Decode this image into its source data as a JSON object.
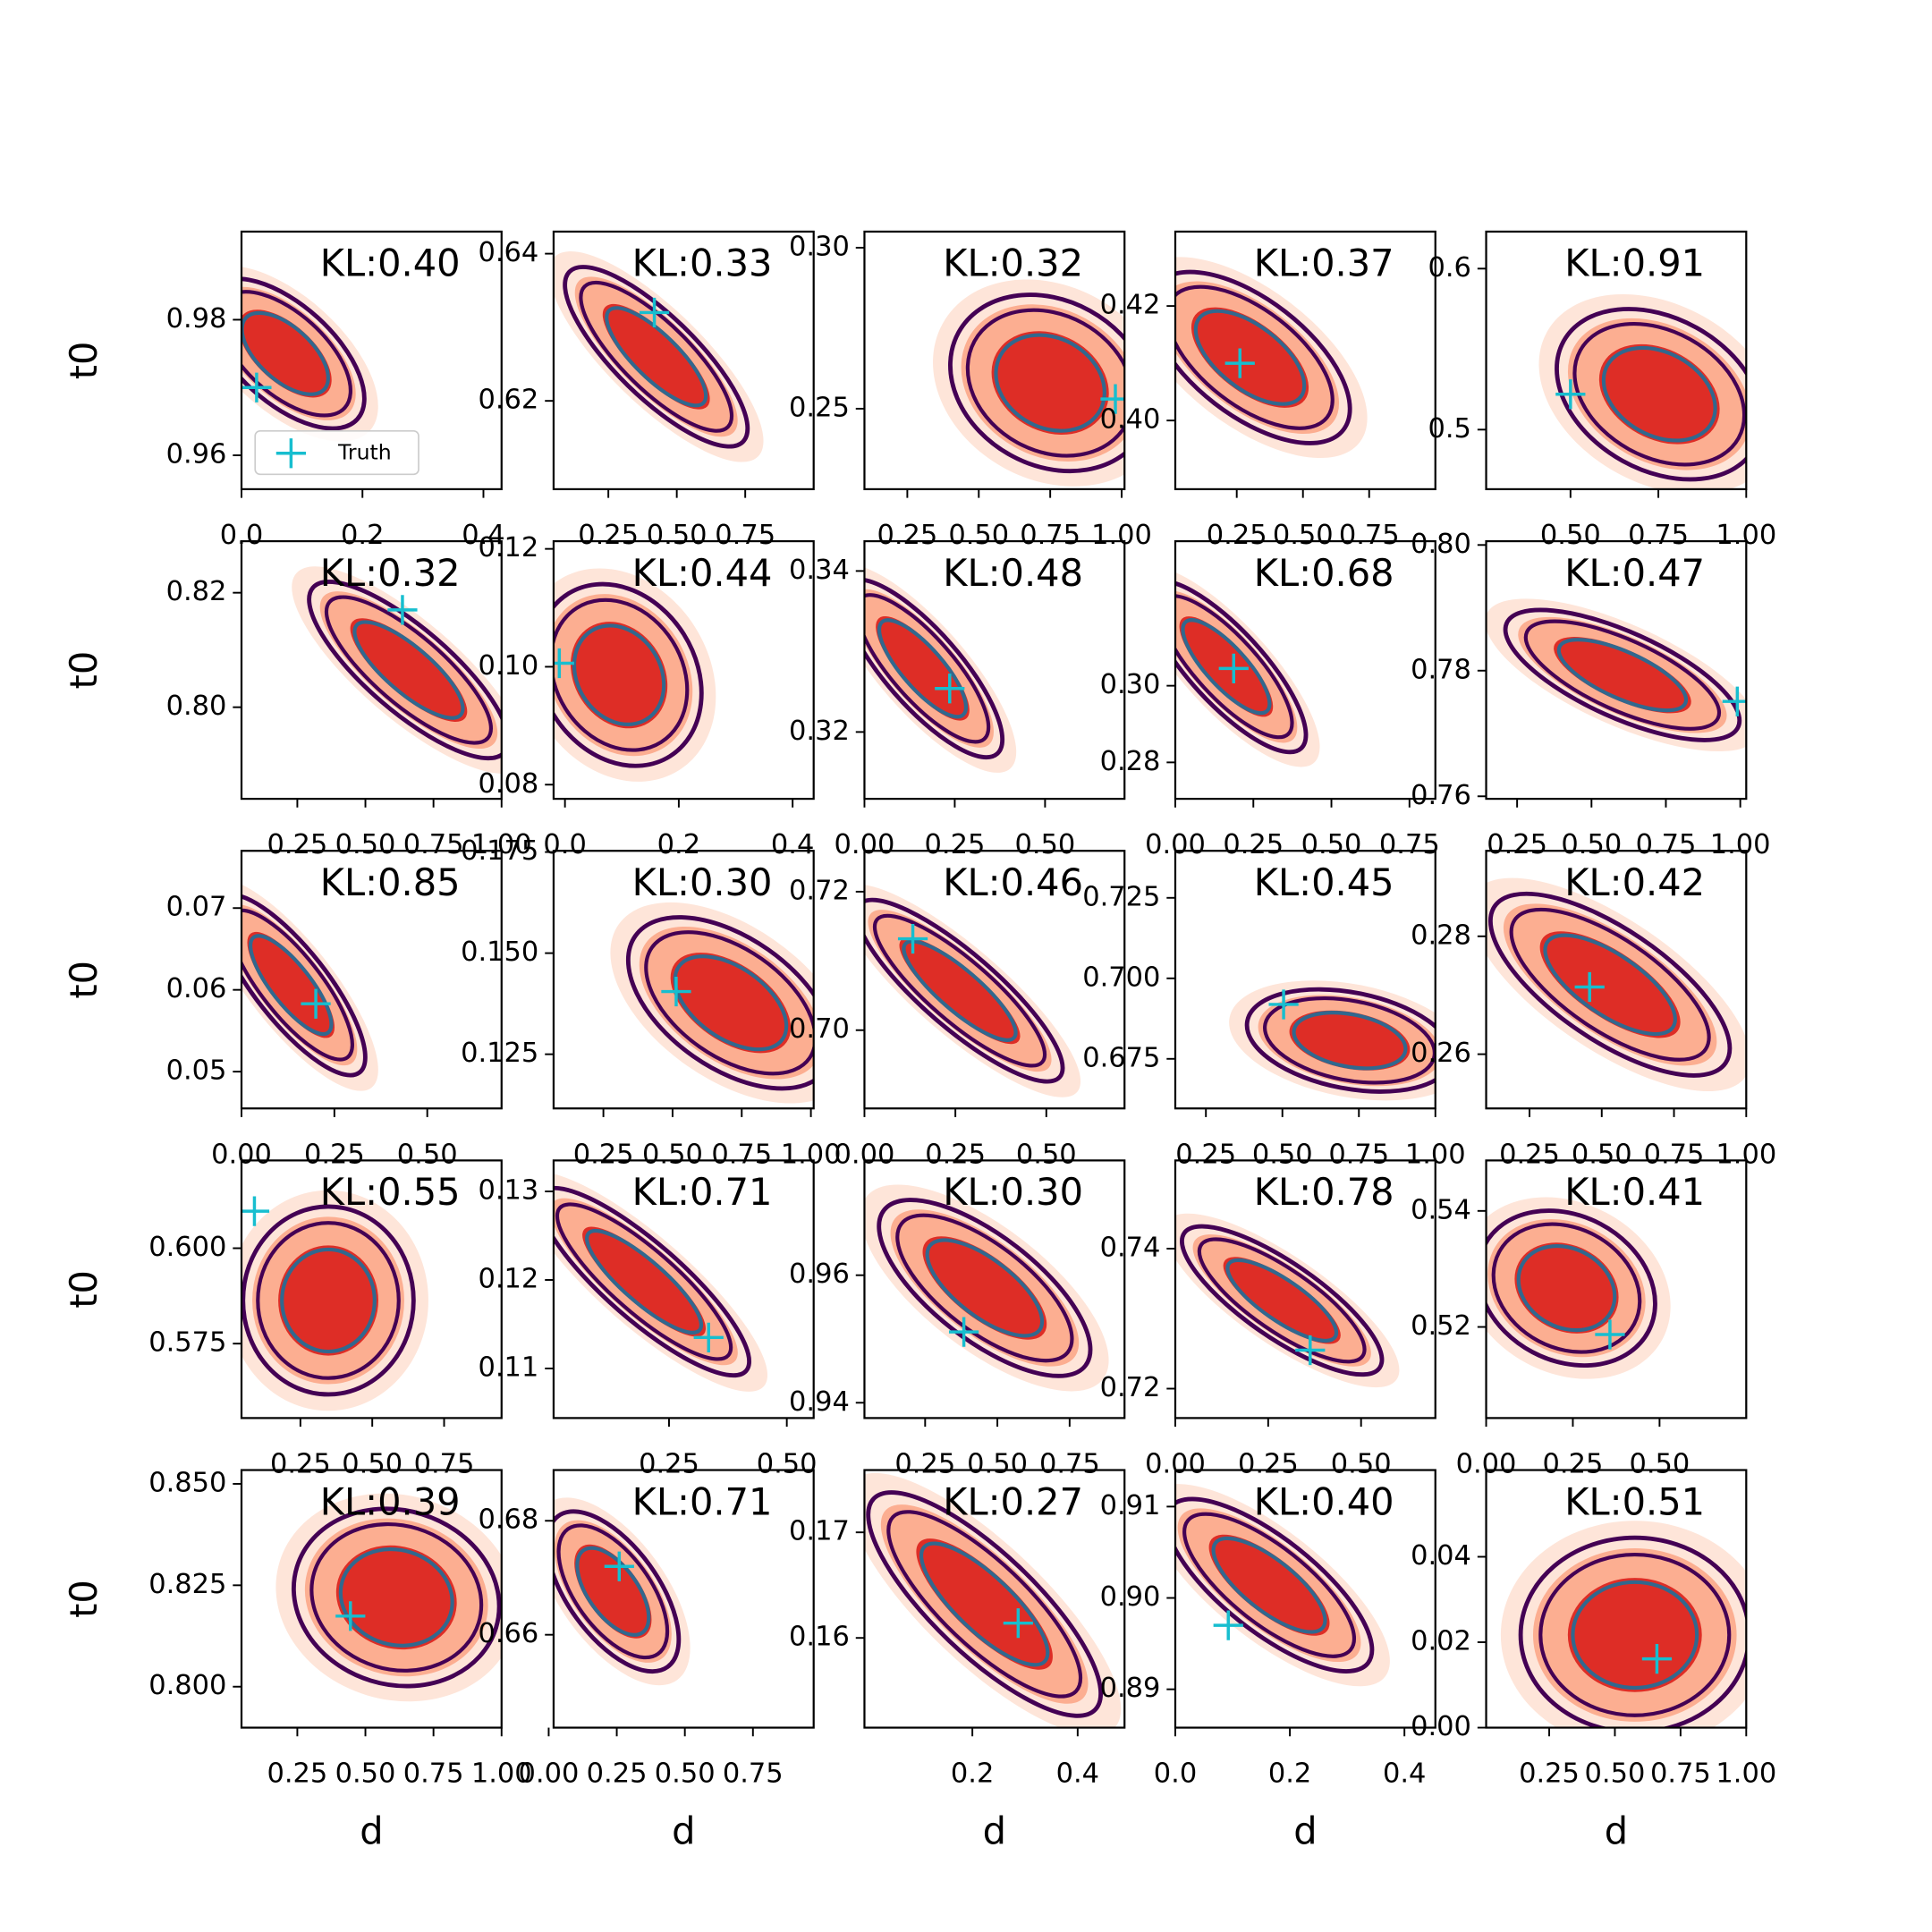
{
  "colors": {
    "fill": [
      "#fee5d9",
      "#fcae91",
      "#de2d26"
    ],
    "contour": [
      "#440154",
      "#440154",
      "#31688e"
    ],
    "truth": "#17becf"
  },
  "chart_data": [
    {
      "type": "contour",
      "annotation": "KL:0.40",
      "ylabel": "t0",
      "legend": "Truth",
      "xlim": [
        0,
        0.43
      ],
      "xticks": [
        {
          "value": 0,
          "label": "0.0"
        },
        0.2,
        0.4
      ],
      "ylim": [
        0.955,
        0.993
      ],
      "yticks": [
        0.96,
        0.98
      ],
      "truth": {
        "x": 0.025,
        "y": 0.97
      },
      "density": {
        "x": 0.072,
        "y": 0.975,
        "sx": 0.057,
        "sy": 0.0048,
        "rho": -0.6
      }
    },
    {
      "type": "contour",
      "annotation": "KL:0.33",
      "xlim": [
        0.05,
        1.0
      ],
      "xticks": [
        0.25,
        {
          "value": 0.5,
          "label": "0.50"
        },
        0.75
      ],
      "ylim": [
        0.608,
        0.643
      ],
      "yticks": [
        0.62,
        0.64
      ],
      "truth": {
        "x": 0.418,
        "y": 0.632
      },
      "density": {
        "x": 0.425,
        "y": 0.626,
        "sx": 0.145,
        "sy": 0.0053,
        "rho": -0.8
      }
    },
    {
      "type": "contour",
      "annotation": "KL:0.32",
      "xlim": [
        0.1,
        1.01
      ],
      "xticks": [
        0.25,
        {
          "value": 0.5,
          "label": "0.50"
        },
        0.75,
        {
          "value": 1,
          "label": "1.00"
        }
      ],
      "ylim": [
        0.225,
        0.305
      ],
      "yticks": [
        0.25,
        {
          "value": 0.3,
          "label": "0.30"
        }
      ],
      "truth": {
        "x": 0.978,
        "y": 0.253
      },
      "density": {
        "x": 0.75,
        "y": 0.258,
        "sx": 0.152,
        "sy": 0.0119,
        "rho": -0.2
      }
    },
    {
      "type": "contour",
      "annotation": "KL:0.37",
      "xlim": [
        0.018,
        1.0
      ],
      "xticks": [
        0.25,
        {
          "value": 0.5,
          "label": "0.50"
        },
        0.75
      ],
      "ylim": [
        0.388,
        0.433
      ],
      "yticks": [
        {
          "value": 0.4,
          "label": "0.40"
        },
        0.42
      ],
      "truth": {
        "x": 0.262,
        "y": 0.41
      },
      "density": {
        "x": 0.3,
        "y": 0.411,
        "sx": 0.164,
        "sy": 0.0065,
        "rho": -0.6
      }
    },
    {
      "type": "contour",
      "annotation": "KL:0.91",
      "xlim": [
        0.26,
        1.0
      ],
      "xticks": [
        {
          "value": 0.5,
          "label": "0.50"
        },
        0.75,
        {
          "value": 1,
          "label": "1.00"
        }
      ],
      "ylim": [
        0.463,
        0.623
      ],
      "yticks": [
        0.5,
        0.6
      ],
      "truth": {
        "x": 0.5,
        "y": 0.522
      },
      "density": {
        "x": 0.753,
        "y": 0.522,
        "sx": 0.127,
        "sy": 0.023,
        "rho": -0.3
      }
    },
    {
      "type": "contour",
      "annotation": "KL:0.32",
      "ylabel": "t0",
      "xlim": [
        0.045,
        1.0
      ],
      "xticks": [
        0.25,
        {
          "value": 0.5,
          "label": "0.50"
        },
        0.75,
        {
          "value": 1,
          "label": "1.00"
        }
      ],
      "ylim": [
        0.784,
        0.829
      ],
      "yticks": [
        {
          "value": 0.8,
          "label": "0.80"
        },
        0.82
      ],
      "truth": {
        "x": 0.636,
        "y": 0.817
      },
      "density": {
        "x": 0.659,
        "y": 0.8065,
        "sx": 0.159,
        "sy": 0.0067,
        "rho": -0.8
      }
    },
    {
      "type": "contour",
      "annotation": "KL:0.44",
      "xlim": [
        -0.02,
        0.437
      ],
      "xticks": [
        {
          "value": 0,
          "label": "0.0"
        },
        0.2,
        0.4
      ],
      "ylim": [
        0.0776,
        0.1213
      ],
      "yticks": [
        0.08,
        {
          "value": 0.1,
          "label": "0.10"
        },
        0.12
      ],
      "truth": {
        "x": -0.01,
        "y": 0.1006
      },
      "density": {
        "x": 0.095,
        "y": 0.0986,
        "sx": 0.063,
        "sy": 0.0067,
        "rho": -0.2
      }
    },
    {
      "type": "contour",
      "annotation": "KL:0.48",
      "xlim": [
        0,
        0.72
      ],
      "xticks": [
        {
          "value": 0,
          "label": "0.00"
        },
        0.25,
        {
          "value": 0.5,
          "label": "0.50"
        }
      ],
      "ylim": [
        0.3117,
        0.3437
      ],
      "yticks": [
        0.32,
        0.34
      ],
      "truth": {
        "x": 0.236,
        "y": 0.3254
      },
      "density": {
        "x": 0.161,
        "y": 0.3279,
        "sx": 0.096,
        "sy": 0.0048,
        "rho": -0.8
      }
    },
    {
      "type": "contour",
      "annotation": "KL:0.68",
      "xlim": [
        0,
        0.833
      ],
      "xticks": [
        {
          "value": 0,
          "label": "0.00"
        },
        0.25,
        {
          "value": 0.5,
          "label": "0.50"
        },
        0.75
      ],
      "ylim": [
        0.2705,
        0.3377
      ],
      "yticks": [
        0.28,
        {
          "value": 0.3,
          "label": "0.30"
        }
      ],
      "truth": {
        "x": 0.187,
        "y": 0.3045
      },
      "density": {
        "x": 0.163,
        "y": 0.305,
        "sx": 0.111,
        "sy": 0.0097,
        "rho": -0.8
      }
    },
    {
      "type": "contour",
      "annotation": "KL:0.47",
      "xlim": [
        0.146,
        1.02
      ],
      "xticks": [
        0.25,
        {
          "value": 0.5,
          "label": "0.50"
        },
        0.75,
        {
          "value": 1,
          "label": "1.00"
        }
      ],
      "ylim": [
        0.7596,
        0.8006
      ],
      "yticks": [
        0.76,
        0.78,
        {
          "value": 0.8,
          "label": "0.80"
        }
      ],
      "truth": {
        "x": 0.99,
        "y": 0.7751
      },
      "density": {
        "x": 0.604,
        "y": 0.7793,
        "sx": 0.171,
        "sy": 0.0045,
        "rho": -0.7
      }
    },
    {
      "type": "contour",
      "annotation": "KL:0.85",
      "ylabel": "t0",
      "xlim": [
        0,
        0.7
      ],
      "xticks": [
        {
          "value": 0,
          "label": "0.00"
        },
        0.25,
        {
          "value": 0.5,
          "label": "0.50"
        }
      ],
      "ylim": [
        0.0455,
        0.077
      ],
      "yticks": [
        0.05,
        0.06,
        0.07
      ],
      "truth": {
        "x": 0.2,
        "y": 0.0583
      },
      "density": {
        "x": 0.133,
        "y": 0.0606,
        "sx": 0.087,
        "sy": 0.0048,
        "rho": -0.8
      }
    },
    {
      "type": "contour",
      "annotation": "KL:0.30",
      "xlim": [
        0.07,
        1.01
      ],
      "xticks": [
        0.25,
        {
          "value": 0.5,
          "label": "0.50"
        },
        0.75,
        {
          "value": 1,
          "label": "1.00"
        }
      ],
      "ylim": [
        0.1116,
        0.1753
      ],
      "yticks": [
        0.125,
        {
          "value": 0.15,
          "label": "0.150"
        },
        0.175
      ],
      "truth": {
        "x": 0.513,
        "y": 0.1405
      },
      "density": {
        "x": 0.71,
        "y": 0.1377,
        "sx": 0.161,
        "sy": 0.0092,
        "rho": -0.5
      }
    },
    {
      "type": "contour",
      "annotation": "KL:0.46",
      "xlim": [
        0,
        0.715
      ],
      "xticks": [
        {
          "value": 0,
          "label": "0.00"
        },
        0.25,
        {
          "value": 0.5,
          "label": "0.50"
        }
      ],
      "ylim": [
        0.6887,
        0.7259
      ],
      "yticks": [
        {
          "value": 0.7,
          "label": "0.70"
        },
        0.72
      ],
      "truth": {
        "x": 0.133,
        "y": 0.7132
      },
      "density": {
        "x": 0.262,
        "y": 0.7057,
        "sx": 0.123,
        "sy": 0.0057,
        "rho": -0.85
      }
    },
    {
      "type": "contour",
      "annotation": "KL:0.45",
      "xlim": [
        0.15,
        1.0
      ],
      "xticks": [
        0.25,
        {
          "value": 0.5,
          "label": "0.50"
        },
        0.75,
        {
          "value": 1,
          "label": "1.00"
        }
      ],
      "ylim": [
        0.6596,
        0.7396
      ],
      "yticks": [
        0.675,
        {
          "value": 0.7,
          "label": "0.700"
        },
        0.725
      ],
      "truth": {
        "x": 0.504,
        "y": 0.6919
      },
      "density": {
        "x": 0.72,
        "y": 0.6807,
        "sx": 0.146,
        "sy": 0.0069,
        "rho": -0.3
      }
    },
    {
      "type": "contour",
      "annotation": "KL:0.42",
      "xlim": [
        0.1,
        1.0
      ],
      "xticks": [
        0.25,
        {
          "value": 0.5,
          "label": "0.50"
        },
        0.75,
        {
          "value": 1,
          "label": "1.00"
        }
      ],
      "ylim": [
        0.2508,
        0.2945
      ],
      "yticks": [
        0.26,
        0.28
      ],
      "truth": {
        "x": 0.458,
        "y": 0.2714
      },
      "density": {
        "x": 0.529,
        "y": 0.2718,
        "sx": 0.18,
        "sy": 0.0067,
        "rho": -0.7
      }
    },
    {
      "type": "contour",
      "annotation": "KL:0.55",
      "ylabel": "t0",
      "xlim": [
        0.045,
        0.95
      ],
      "xticks": [
        0.25,
        {
          "value": 0.5,
          "label": "0.50"
        },
        0.75
      ],
      "ylim": [
        0.5555,
        0.623
      ],
      "yticks": [
        0.575,
        {
          "value": 0.6,
          "label": "0.600"
        }
      ],
      "truth": {
        "x": 0.09,
        "y": 0.6097
      },
      "density": {
        "x": 0.347,
        "y": 0.5863,
        "sx": 0.129,
        "sy": 0.0107,
        "rho": 0
      }
    },
    {
      "type": "contour",
      "annotation": "KL:0.71",
      "xlim": [
        0.005,
        0.557
      ],
      "xticks": [
        0.25,
        {
          "value": 0.5,
          "label": "0.50"
        }
      ],
      "ylim": [
        0.1044,
        0.1335
      ],
      "yticks": [
        0.11,
        0.12,
        0.13
      ],
      "truth": {
        "x": 0.334,
        "y": 0.1135
      },
      "density": {
        "x": 0.197,
        "y": 0.1198,
        "sx": 0.097,
        "sy": 0.0046,
        "rho": -0.85
      }
    },
    {
      "type": "contour",
      "annotation": "KL:0.30",
      "xlim": [
        0.04,
        0.94
      ],
      "xticks": [
        0.25,
        {
          "value": 0.5,
          "label": "0.50"
        },
        0.75
      ],
      "ylim": [
        0.9376,
        0.978
      ],
      "yticks": [
        0.94,
        0.96
      ],
      "truth": {
        "x": 0.384,
        "y": 0.9511
      },
      "density": {
        "x": 0.456,
        "y": 0.958,
        "sx": 0.159,
        "sy": 0.006,
        "rho": -0.7
      }
    },
    {
      "type": "contour",
      "annotation": "KL:0.78",
      "xlim": [
        0,
        0.7
      ],
      "xticks": [
        {
          "value": 0,
          "label": "0.00"
        },
        0.25,
        {
          "value": 0.5,
          "label": "0.50"
        }
      ],
      "ylim": [
        0.7158,
        0.7526
      ],
      "yticks": [
        0.72,
        0.74
      ],
      "truth": {
        "x": 0.363,
        "y": 0.7255
      },
      "density": {
        "x": 0.287,
        "y": 0.7326,
        "sx": 0.117,
        "sy": 0.0046,
        "rho": -0.8
      }
    },
    {
      "type": "contour",
      "annotation": "KL:0.41",
      "xlim": [
        0,
        0.75
      ],
      "xticks": [
        {
          "value": 0,
          "label": "0.00"
        },
        0.25,
        {
          "value": 0.5,
          "label": "0.50"
        }
      ],
      "ylim": [
        0.5043,
        0.5487
      ],
      "yticks": [
        0.52,
        0.54
      ],
      "truth": {
        "x": 0.357,
        "y": 0.5187
      },
      "density": {
        "x": 0.232,
        "y": 0.5267,
        "sx": 0.111,
        "sy": 0.0058,
        "rho": -0.2
      }
    },
    {
      "type": "contour",
      "annotation": "KL:0.39",
      "ylabel": "t0",
      "xlabel": "d",
      "xlim": [
        0.045,
        1.0
      ],
      "xticks": [
        0.25,
        {
          "value": 0.5,
          "label": "0.50"
        },
        0.75,
        {
          "value": 1,
          "label": "1.00"
        }
      ],
      "ylim": [
        0.7899,
        0.8534
      ],
      "yticks": [
        {
          "value": 0.8,
          "label": "0.800"
        },
        0.825,
        {
          "value": 0.85,
          "label": "0.850"
        }
      ],
      "truth": {
        "x": 0.445,
        "y": 0.8174
      },
      "density": {
        "x": 0.614,
        "y": 0.822,
        "sx": 0.164,
        "sy": 0.0095,
        "rho": -0.1
      }
    },
    {
      "type": "contour",
      "annotation": "KL:0.71",
      "xlabel": "d",
      "xlim": [
        0.018,
        0.973
      ],
      "xticks": [
        {
          "value": 0,
          "label": "0.00"
        },
        0.25,
        {
          "value": 0.5,
          "label": "0.50"
        },
        0.75
      ],
      "ylim": [
        0.6437,
        0.6889
      ],
      "yticks": [
        0.66,
        0.68
      ],
      "truth": {
        "x": 0.259,
        "y": 0.672
      },
      "density": {
        "x": 0.236,
        "y": 0.6676,
        "sx": 0.105,
        "sy": 0.0061,
        "rho": -0.6
      }
    },
    {
      "type": "contour",
      "annotation": "KL:0.27",
      "xlabel": "d",
      "xlim": [
        -0.005,
        0.489
      ],
      "xticks": [
        0.2,
        0.4
      ],
      "ylim": [
        0.1515,
        0.1759
      ],
      "yticks": [
        0.16,
        0.17
      ],
      "truth": {
        "x": 0.287,
        "y": 0.1614
      },
      "density": {
        "x": 0.223,
        "y": 0.1632,
        "sx": 0.096,
        "sy": 0.0046,
        "rho": -0.8
      }
    },
    {
      "type": "contour",
      "annotation": "KL:0.40",
      "xlabel": "d",
      "xlim": [
        0,
        0.454
      ],
      "xticks": [
        {
          "value": 0,
          "label": "0.0"
        },
        0.2,
        0.4
      ],
      "ylim": [
        0.8858,
        0.914
      ],
      "yticks": [
        0.89,
        {
          "value": 0.9,
          "label": "0.90"
        },
        0.91
      ],
      "truth": {
        "x": 0.0925,
        "y": 0.897
      },
      "density": {
        "x": 0.164,
        "y": 0.9014,
        "sx": 0.078,
        "sy": 0.0041,
        "rho": -0.75
      }
    },
    {
      "type": "contour",
      "annotation": "KL:0.51",
      "xlabel": "d",
      "xlim": [
        0.01,
        1.0
      ],
      "xticks": [
        0.25,
        {
          "value": 0.5,
          "label": "0.50"
        },
        0.75,
        {
          "value": 1,
          "label": "1.00"
        }
      ],
      "ylim": [
        0,
        0.0603
      ],
      "yticks": [
        {
          "value": 0,
          "label": "0.00"
        },
        0.02,
        0.04
      ],
      "truth": {
        "x": 0.66,
        "y": 0.0161
      },
      "density": {
        "x": 0.576,
        "y": 0.0217,
        "sx": 0.189,
        "sy": 0.0099,
        "rho": 0
      }
    }
  ]
}
